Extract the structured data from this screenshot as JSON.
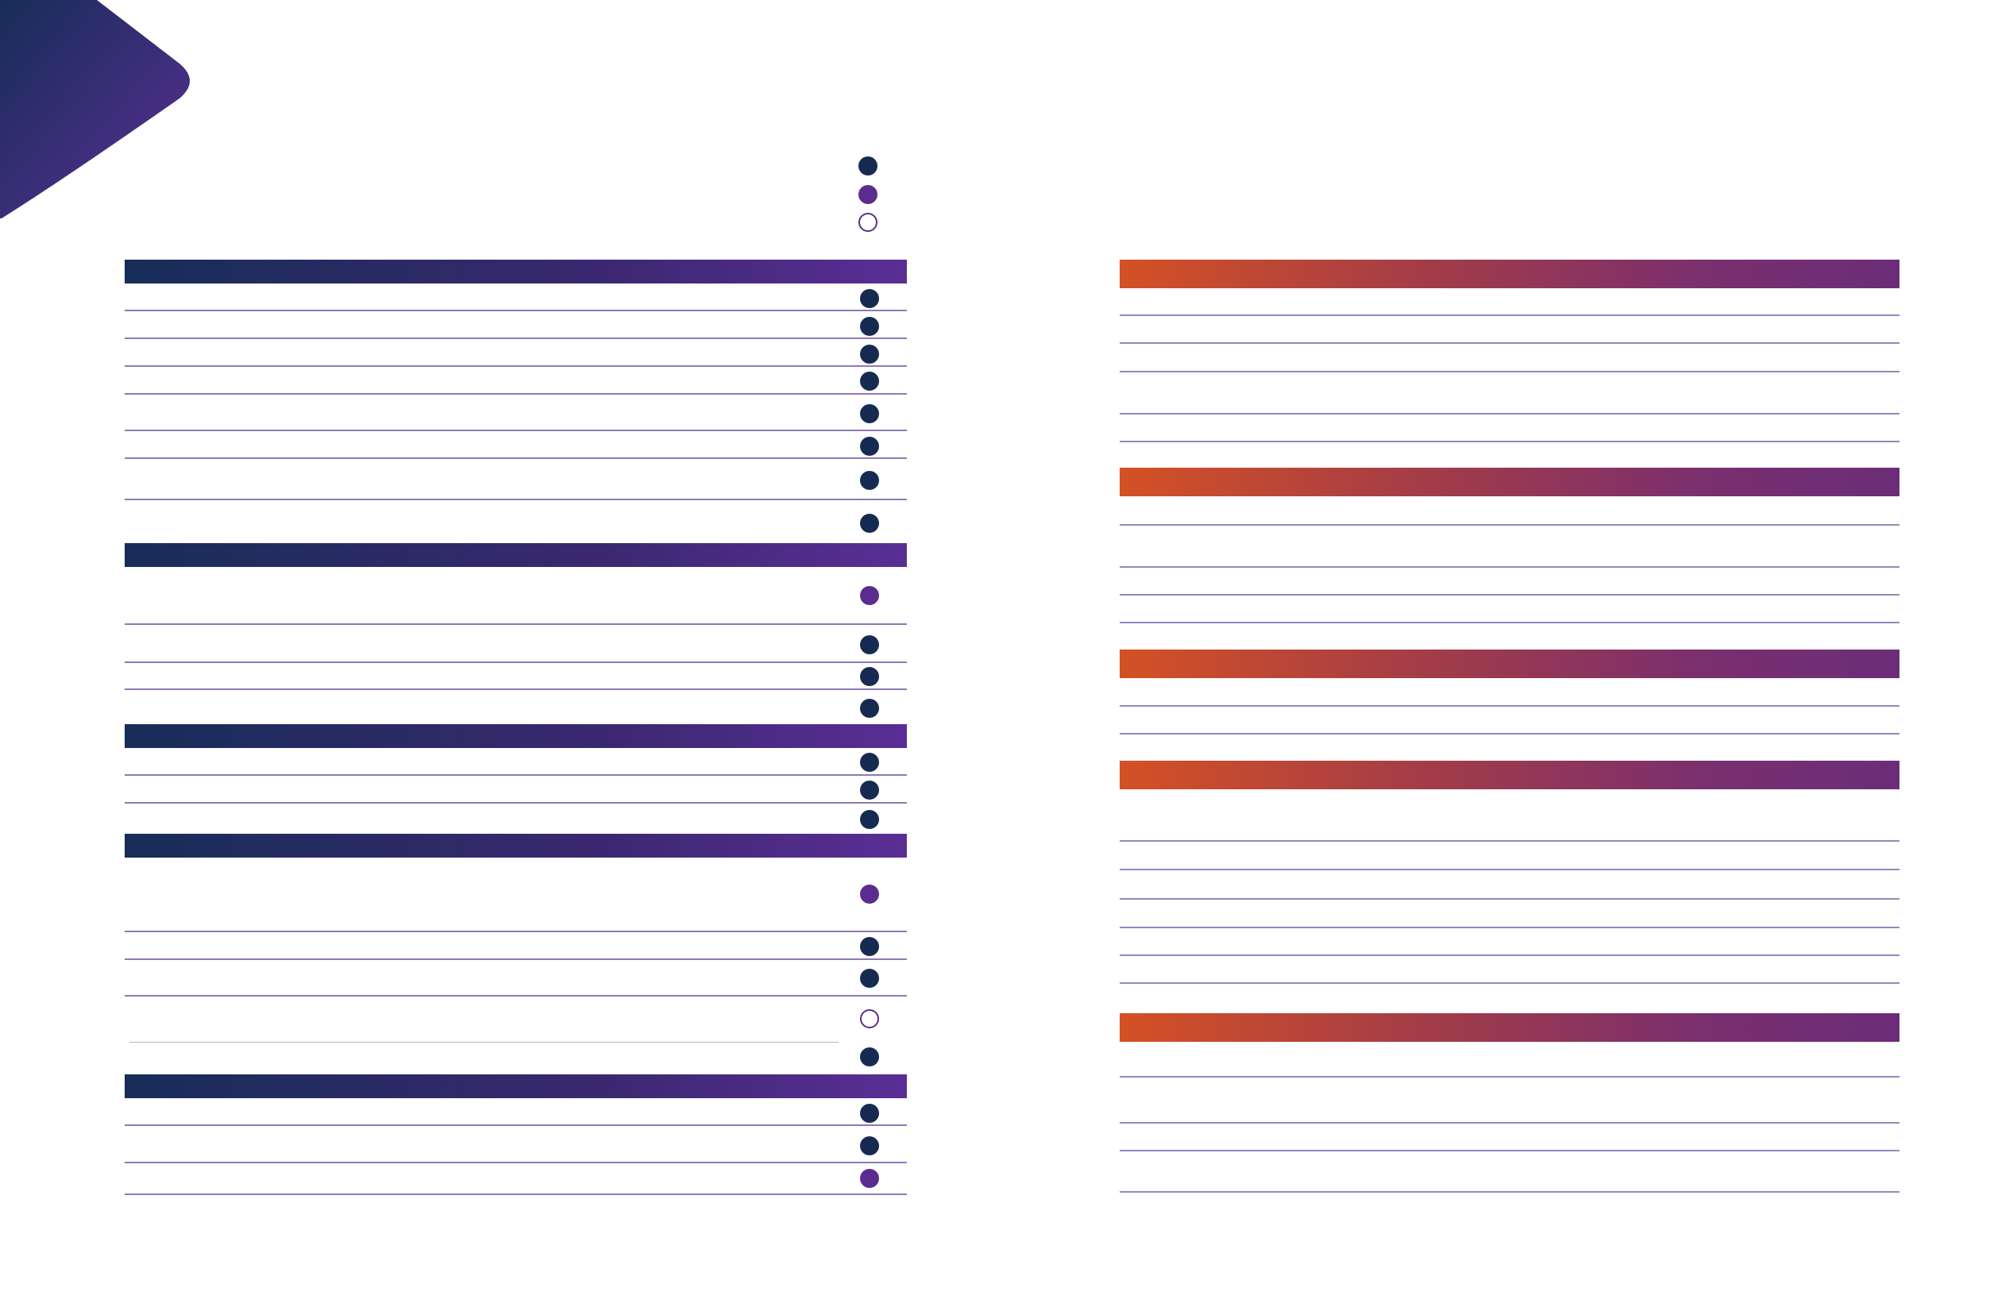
{
  "colors": {
    "corner_dark": "#172d58",
    "corner_light": "#5a2e95",
    "status_full": "#172b52",
    "status_partial": "#5b2c8f",
    "status_none_outline": "#5b2c8f",
    "left_bar_start": "#172d58",
    "left_bar_end": "#5a2e95",
    "right_bar_start": "#d45124",
    "right_bar_end": "#6b2d78",
    "rule_line": "#8f78b6"
  },
  "legend": {
    "items": [
      {
        "status": "full",
        "icon": "filled-dark-circle-icon"
      },
      {
        "status": "partial",
        "icon": "filled-purple-circle-icon"
      },
      {
        "status": "none",
        "icon": "hollow-circle-icon"
      }
    ]
  },
  "left_column": {
    "sections": [
      {
        "rows": [
          "full",
          "full",
          "full",
          "full",
          "full",
          "full",
          "full",
          "full"
        ]
      },
      {
        "rows": [
          "partial",
          "full",
          "full",
          "full"
        ]
      },
      {
        "rows": [
          "full",
          "full",
          "full"
        ]
      },
      {
        "rows": [
          "partial",
          "full",
          "full",
          "none",
          "full"
        ]
      },
      {
        "rows": [
          "full",
          "full",
          "partial"
        ]
      }
    ]
  },
  "right_column": {
    "sections": [
      {
        "row_count": 6
      },
      {
        "row_count": 4
      },
      {
        "row_count": 2
      },
      {
        "row_count": 7
      },
      {
        "row_count": 5
      }
    ]
  }
}
